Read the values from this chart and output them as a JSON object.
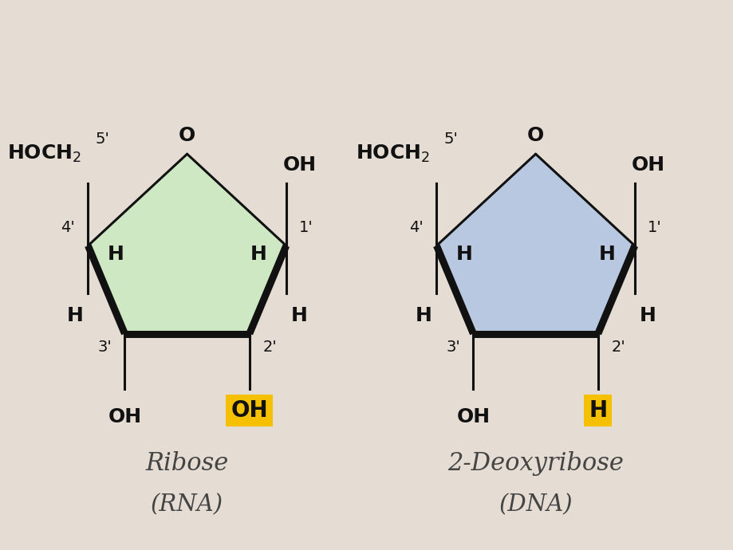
{
  "background_color": "#e5ddd4",
  "ribose_fill": "#cee8c4",
  "deoxyribose_fill": "#b8c8e0",
  "ring_edge_color": "#111111",
  "ring_lw": 2.2,
  "bold_lw": 6.5,
  "label_fontsize": 18,
  "small_label_fontsize": 14,
  "title_fontsize": 22,
  "subtitle_fontsize": 21,
  "highlight_color": "#f5c000",
  "text_color": "#111111",
  "title1": "Ribose",
  "subtitle1": "(RNA)",
  "title2": "2-Deoxyribose",
  "subtitle2": "(DNA)"
}
